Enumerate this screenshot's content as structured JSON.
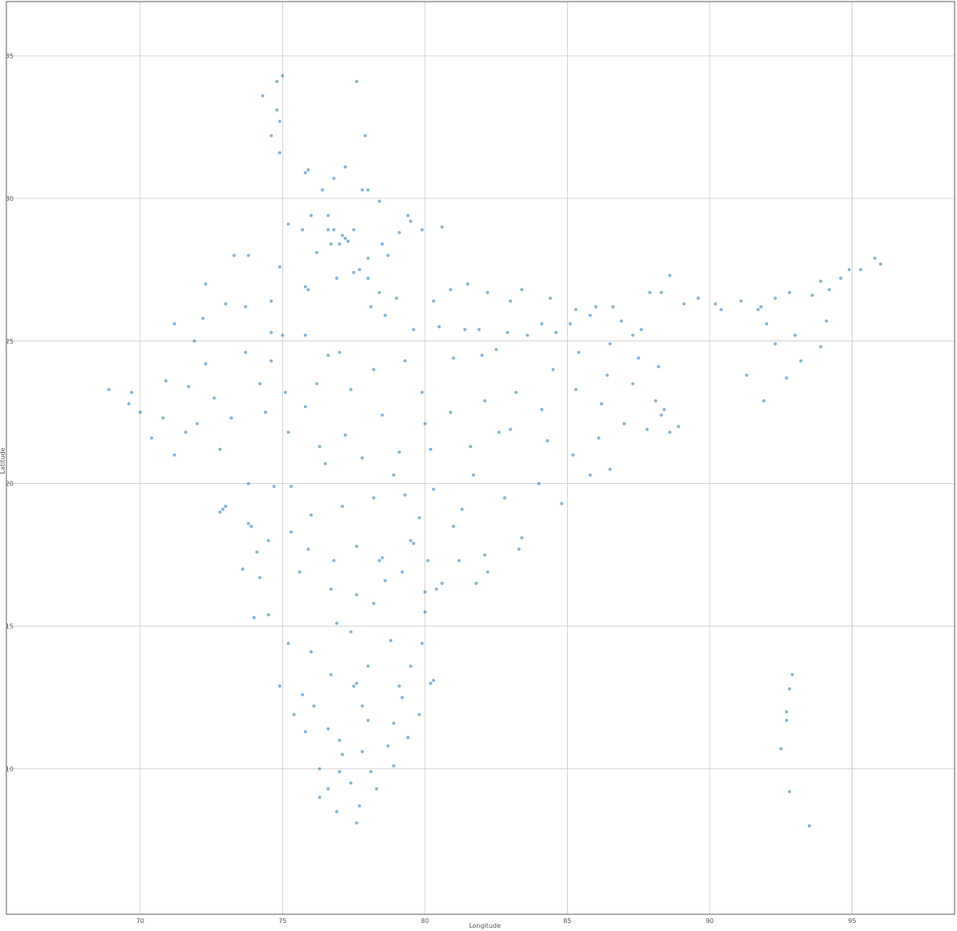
{
  "chart_data": {
    "type": "scatter",
    "title": "",
    "xlabel": "Longitude",
    "ylabel": "Latitude",
    "xlim": [
      65.3,
      98.6
    ],
    "ylim": [
      4.9,
      36.9
    ],
    "xticks": [
      70,
      75,
      80,
      85,
      90,
      95
    ],
    "yticks": [
      10,
      15,
      20,
      25,
      30,
      35
    ],
    "xtick_labels": [
      "70",
      "75",
      "80",
      "85",
      "90",
      "95"
    ],
    "ytick_labels": [
      "10",
      "15",
      "20",
      "25",
      "30",
      "35"
    ],
    "grid": true,
    "color": "#1f77b4",
    "series": [
      {
        "points": [
          [
            77.2,
            28.6
          ],
          [
            77.1,
            28.7
          ],
          [
            77.3,
            28.5
          ],
          [
            77.0,
            28.4
          ],
          [
            76.8,
            28.9
          ],
          [
            77.5,
            28.9
          ],
          [
            76.6,
            29.4
          ],
          [
            76.4,
            30.3
          ],
          [
            76.8,
            30.7
          ],
          [
            75.9,
            31.0
          ],
          [
            75.8,
            30.9
          ],
          [
            74.9,
            31.6
          ],
          [
            74.6,
            32.2
          ],
          [
            74.9,
            32.7
          ],
          [
            74.8,
            33.1
          ],
          [
            74.3,
            33.6
          ],
          [
            74.8,
            34.1
          ],
          [
            75.0,
            34.3
          ],
          [
            77.6,
            34.1
          ],
          [
            77.9,
            32.2
          ],
          [
            77.2,
            31.1
          ],
          [
            77.8,
            30.3
          ],
          [
            78.0,
            30.3
          ],
          [
            78.4,
            29.9
          ],
          [
            79.4,
            29.4
          ],
          [
            79.5,
            29.2
          ],
          [
            78.7,
            28.0
          ],
          [
            78.0,
            27.9
          ],
          [
            77.7,
            27.5
          ],
          [
            78.0,
            27.2
          ],
          [
            78.4,
            26.7
          ],
          [
            79.0,
            26.5
          ],
          [
            80.3,
            26.4
          ],
          [
            80.9,
            26.8
          ],
          [
            81.9,
            25.4
          ],
          [
            82.9,
            25.3
          ],
          [
            83.4,
            26.8
          ],
          [
            84.1,
            25.6
          ],
          [
            85.1,
            25.6
          ],
          [
            85.8,
            25.9
          ],
          [
            86.6,
            26.2
          ],
          [
            87.3,
            25.2
          ],
          [
            87.9,
            26.7
          ],
          [
            88.3,
            26.7
          ],
          [
            88.4,
            22.6
          ],
          [
            88.3,
            22.4
          ],
          [
            88.1,
            22.9
          ],
          [
            87.3,
            23.5
          ],
          [
            86.4,
            23.8
          ],
          [
            85.3,
            23.3
          ],
          [
            84.1,
            22.6
          ],
          [
            86.2,
            22.8
          ],
          [
            85.8,
            20.3
          ],
          [
            84.8,
            19.3
          ],
          [
            83.4,
            18.1
          ],
          [
            83.3,
            17.7
          ],
          [
            82.2,
            16.9
          ],
          [
            81.8,
            16.5
          ],
          [
            80.6,
            16.5
          ],
          [
            80.4,
            16.3
          ],
          [
            79.6,
            17.9
          ],
          [
            78.5,
            17.4
          ],
          [
            78.4,
            17.3
          ],
          [
            77.6,
            17.8
          ],
          [
            76.8,
            17.3
          ],
          [
            75.9,
            17.7
          ],
          [
            74.2,
            16.7
          ],
          [
            73.9,
            18.5
          ],
          [
            73.8,
            18.6
          ],
          [
            72.9,
            19.1
          ],
          [
            72.8,
            19.0
          ],
          [
            73.0,
            19.2
          ],
          [
            73.8,
            20.0
          ],
          [
            74.7,
            19.9
          ],
          [
            75.3,
            19.9
          ],
          [
            76.5,
            20.7
          ],
          [
            77.8,
            20.9
          ],
          [
            79.1,
            21.1
          ],
          [
            80.2,
            21.2
          ],
          [
            81.6,
            21.3
          ],
          [
            82.6,
            21.8
          ],
          [
            81.3,
            19.1
          ],
          [
            78.2,
            19.5
          ],
          [
            79.5,
            18.0
          ],
          [
            72.6,
            23.0
          ],
          [
            72.8,
            21.2
          ],
          [
            73.2,
            22.3
          ],
          [
            70.8,
            22.3
          ],
          [
            69.7,
            23.2
          ],
          [
            70.0,
            22.5
          ],
          [
            71.6,
            21.8
          ],
          [
            73.7,
            24.6
          ],
          [
            75.8,
            26.9
          ],
          [
            75.9,
            26.8
          ],
          [
            74.6,
            26.4
          ],
          [
            73.0,
            26.3
          ],
          [
            71.9,
            25.0
          ],
          [
            72.3,
            27.0
          ],
          [
            73.3,
            28.0
          ],
          [
            74.6,
            25.3
          ],
          [
            75.8,
            25.2
          ],
          [
            76.6,
            24.5
          ],
          [
            77.4,
            23.3
          ],
          [
            75.8,
            22.7
          ],
          [
            78.1,
            26.2
          ],
          [
            79.9,
            23.2
          ],
          [
            81.0,
            24.4
          ],
          [
            82.0,
            24.5
          ],
          [
            76.6,
            28.9
          ],
          [
            77.0,
            9.9
          ],
          [
            76.3,
            10.0
          ],
          [
            76.9,
            8.5
          ],
          [
            77.6,
            8.1
          ],
          [
            77.7,
            8.7
          ],
          [
            78.1,
            9.9
          ],
          [
            78.7,
            10.8
          ],
          [
            79.8,
            11.9
          ],
          [
            80.3,
            13.1
          ],
          [
            80.2,
            13.0
          ],
          [
            79.1,
            12.9
          ],
          [
            78.0,
            11.7
          ],
          [
            77.0,
            11.0
          ],
          [
            76.6,
            11.4
          ],
          [
            75.8,
            11.3
          ],
          [
            75.4,
            11.9
          ],
          [
            74.9,
            12.9
          ],
          [
            75.2,
            14.4
          ],
          [
            74.5,
            15.4
          ],
          [
            74.0,
            15.3
          ],
          [
            76.9,
            15.1
          ],
          [
            77.6,
            13.0
          ],
          [
            77.5,
            12.9
          ],
          [
            78.8,
            14.5
          ],
          [
            79.9,
            14.4
          ],
          [
            80.0,
            15.5
          ],
          [
            78.2,
            15.8
          ],
          [
            91.7,
            26.1
          ],
          [
            91.8,
            26.2
          ],
          [
            92.8,
            26.7
          ],
          [
            94.9,
            27.5
          ],
          [
            94.2,
            26.8
          ],
          [
            93.9,
            27.1
          ],
          [
            95.3,
            27.5
          ],
          [
            96.0,
            27.7
          ],
          [
            92.7,
            23.7
          ],
          [
            91.3,
            23.8
          ],
          [
            93.9,
            24.8
          ],
          [
            94.1,
            25.7
          ],
          [
            92.0,
            25.6
          ],
          [
            90.4,
            26.1
          ],
          [
            89.6,
            26.5
          ],
          [
            88.6,
            27.3
          ],
          [
            92.9,
            13.3
          ],
          [
            92.8,
            12.8
          ],
          [
            92.7,
            12.0
          ],
          [
            92.7,
            11.7
          ],
          [
            92.5,
            10.7
          ],
          [
            92.8,
            9.2
          ],
          [
            93.5,
            8.0
          ],
          [
            75.0,
            25.2
          ],
          [
            74.6,
            24.3
          ],
          [
            74.2,
            23.5
          ],
          [
            73.7,
            26.2
          ],
          [
            72.2,
            25.8
          ],
          [
            71.2,
            25.6
          ],
          [
            73.8,
            28.0
          ],
          [
            74.9,
            27.6
          ],
          [
            75.2,
            29.1
          ],
          [
            75.7,
            28.9
          ],
          [
            76.0,
            29.4
          ],
          [
            76.7,
            28.4
          ],
          [
            76.2,
            28.1
          ],
          [
            76.9,
            27.2
          ],
          [
            77.5,
            27.4
          ],
          [
            78.5,
            28.4
          ],
          [
            79.1,
            28.8
          ],
          [
            79.9,
            28.9
          ],
          [
            80.6,
            29.0
          ],
          [
            81.5,
            27.0
          ],
          [
            82.2,
            26.7
          ],
          [
            83.0,
            26.4
          ],
          [
            84.4,
            26.5
          ],
          [
            85.3,
            26.1
          ],
          [
            86.0,
            26.2
          ],
          [
            86.9,
            25.7
          ],
          [
            87.6,
            25.4
          ],
          [
            84.6,
            25.3
          ],
          [
            83.6,
            25.2
          ],
          [
            82.5,
            24.7
          ],
          [
            81.4,
            25.4
          ],
          [
            80.5,
            25.5
          ],
          [
            79.6,
            25.4
          ],
          [
            78.6,
            25.9
          ],
          [
            79.3,
            24.3
          ],
          [
            78.2,
            24.0
          ],
          [
            77.0,
            24.6
          ],
          [
            76.2,
            23.5
          ],
          [
            75.1,
            23.2
          ],
          [
            74.4,
            22.5
          ],
          [
            75.2,
            21.8
          ],
          [
            76.3,
            21.3
          ],
          [
            77.2,
            21.7
          ],
          [
            78.5,
            22.4
          ],
          [
            80.0,
            22.1
          ],
          [
            80.9,
            22.5
          ],
          [
            82.1,
            22.9
          ],
          [
            83.0,
            21.9
          ],
          [
            84.3,
            21.5
          ],
          [
            85.2,
            21.0
          ],
          [
            86.1,
            21.6
          ],
          [
            87.0,
            22.1
          ],
          [
            86.5,
            20.5
          ],
          [
            84.0,
            20.0
          ],
          [
            82.8,
            19.5
          ],
          [
            81.7,
            20.3
          ],
          [
            80.3,
            19.8
          ],
          [
            79.3,
            19.6
          ],
          [
            78.9,
            20.3
          ],
          [
            77.1,
            19.2
          ],
          [
            76.0,
            18.9
          ],
          [
            75.3,
            18.3
          ],
          [
            74.5,
            18.0
          ],
          [
            73.6,
            17.0
          ],
          [
            74.1,
            17.6
          ],
          [
            75.6,
            16.9
          ],
          [
            76.7,
            16.3
          ],
          [
            77.6,
            16.1
          ],
          [
            78.6,
            16.6
          ],
          [
            79.2,
            16.9
          ],
          [
            80.1,
            17.3
          ],
          [
            81.2,
            17.3
          ],
          [
            82.1,
            17.5
          ],
          [
            81.0,
            18.5
          ],
          [
            79.8,
            18.8
          ],
          [
            77.4,
            14.8
          ],
          [
            78.0,
            13.6
          ],
          [
            76.7,
            13.3
          ],
          [
            76.0,
            14.1
          ],
          [
            75.7,
            12.6
          ],
          [
            76.1,
            12.2
          ],
          [
            77.8,
            12.2
          ],
          [
            78.9,
            11.6
          ],
          [
            79.4,
            11.1
          ],
          [
            78.9,
            10.1
          ],
          [
            78.3,
            9.3
          ],
          [
            77.4,
            9.5
          ],
          [
            76.6,
            9.3
          ],
          [
            76.3,
            9.0
          ],
          [
            77.1,
            10.5
          ],
          [
            77.8,
            10.6
          ],
          [
            79.2,
            12.5
          ],
          [
            79.5,
            13.6
          ],
          [
            80.0,
            16.2
          ],
          [
            70.9,
            23.6
          ],
          [
            69.6,
            22.8
          ],
          [
            70.4,
            21.6
          ],
          [
            71.2,
            21.0
          ],
          [
            72.0,
            22.1
          ],
          [
            71.7,
            23.4
          ],
          [
            72.3,
            24.2
          ],
          [
            68.9,
            23.3
          ],
          [
            88.9,
            22.0
          ],
          [
            88.6,
            21.8
          ],
          [
            87.8,
            21.9
          ],
          [
            88.2,
            24.1
          ],
          [
            87.5,
            24.4
          ],
          [
            86.5,
            24.9
          ],
          [
            85.4,
            24.6
          ],
          [
            84.5,
            24.0
          ],
          [
            83.2,
            23.2
          ],
          [
            89.1,
            26.3
          ],
          [
            90.2,
            26.3
          ],
          [
            91.1,
            26.4
          ],
          [
            92.3,
            26.5
          ],
          [
            93.6,
            26.6
          ],
          [
            93.2,
            24.3
          ],
          [
            92.3,
            24.9
          ],
          [
            91.9,
            22.9
          ],
          [
            93.0,
            25.2
          ],
          [
            94.6,
            27.2
          ],
          [
            95.8,
            27.9
          ]
        ]
      }
    ]
  }
}
